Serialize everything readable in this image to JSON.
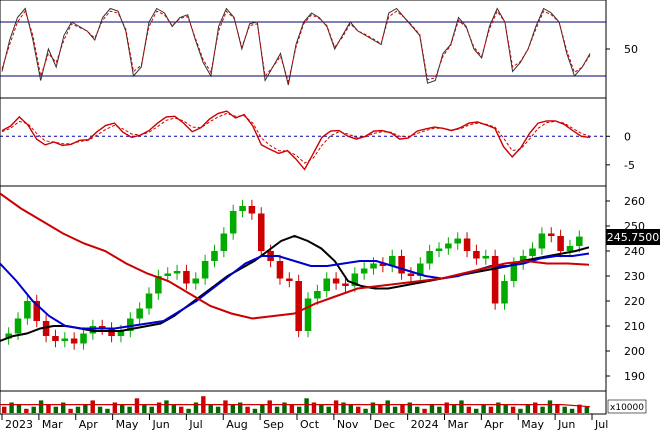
{
  "chart_data": [
    {
      "type": "line",
      "panel": "stochastic",
      "yticks": [
        50
      ],
      "reference_lines": [
        80,
        20
      ],
      "ylim": [
        0,
        100
      ],
      "series": [
        {
          "color": "#333333",
          "style": "solid",
          "values": [
            25,
            60,
            85,
            95,
            60,
            15,
            50,
            30,
            65,
            80,
            75,
            70,
            60,
            85,
            95,
            92,
            70,
            20,
            30,
            80,
            95,
            90,
            75,
            85,
            88,
            60,
            35,
            20,
            75,
            95,
            85,
            50,
            78,
            80,
            15,
            30,
            45,
            10,
            55,
            80,
            90,
            85,
            75,
            50,
            65,
            80,
            70,
            65,
            60,
            55,
            90,
            95,
            85,
            75,
            65,
            12,
            15,
            45,
            55,
            85,
            75,
            50,
            40,
            75,
            95,
            80,
            25,
            35,
            50,
            75,
            95,
            90,
            80,
            45,
            20,
            30,
            45
          ]
        },
        {
          "color": "#cc0000",
          "style": "dashed",
          "values": [
            28,
            55,
            80,
            92,
            65,
            20,
            45,
            35,
            60,
            78,
            74,
            70,
            62,
            82,
            92,
            90,
            72,
            25,
            32,
            75,
            92,
            88,
            76,
            84,
            86,
            62,
            38,
            24,
            70,
            92,
            84,
            52,
            76,
            78,
            20,
            30,
            42,
            14,
            52,
            78,
            88,
            84,
            76,
            52,
            63,
            78,
            70,
            66,
            61,
            56,
            86,
            92,
            85,
            76,
            66,
            16,
            18,
            42,
            54,
            82,
            74,
            52,
            42,
            72,
            92,
            80,
            30,
            36,
            50,
            72,
            92,
            88,
            80,
            48,
            24,
            30,
            43
          ]
        }
      ]
    },
    {
      "type": "line",
      "panel": "macd",
      "yticks": [
        0,
        -5
      ],
      "zero_line": true,
      "ylim": [
        -8,
        6
      ],
      "series": [
        {
          "color": "#cc0000",
          "style": "solid",
          "values": [
            1.0,
            1.8,
            3.4,
            2.0,
            -0.5,
            -1.5,
            -1.0,
            -1.6,
            -1.4,
            -0.7,
            -0.6,
            0.8,
            1.9,
            2.3,
            0.7,
            -0.2,
            0.2,
            1.0,
            2.3,
            3.4,
            3.5,
            2.3,
            0.8,
            1.5,
            3.0,
            4.0,
            4.4,
            3.2,
            3.8,
            1.8,
            -1.5,
            -2.3,
            -3.0,
            -2.5,
            -4.0,
            -5.8,
            -3.0,
            -0.2,
            0.9,
            1.0,
            0.0,
            -0.5,
            0.0,
            0.9,
            1.0,
            0.6,
            -0.5,
            -0.3,
            0.9,
            1.3,
            1.6,
            1.4,
            1.0,
            1.5,
            2.3,
            2.5,
            2.0,
            1.4,
            -1.8,
            -3.6,
            -2.0,
            0.5,
            2.3,
            2.7,
            2.7,
            2.1,
            1.0,
            0.0,
            -0.2
          ]
        },
        {
          "color": "#cc0000",
          "style": "dashed",
          "values": [
            0.8,
            1.4,
            2.6,
            2.2,
            0.5,
            -0.8,
            -1.0,
            -1.3,
            -1.3,
            -0.9,
            -0.7,
            0.2,
            1.2,
            1.9,
            1.3,
            0.4,
            0.2,
            0.7,
            1.7,
            2.8,
            3.2,
            2.7,
            1.6,
            1.5,
            2.5,
            3.4,
            4.0,
            3.5,
            3.6,
            2.3,
            -0.3,
            -1.6,
            -2.5,
            -2.6,
            -3.3,
            -4.7,
            -3.8,
            -1.6,
            0.1,
            0.8,
            0.4,
            -0.2,
            -0.1,
            0.5,
            0.8,
            0.7,
            0.0,
            -0.1,
            0.5,
            1.0,
            1.4,
            1.4,
            1.1,
            1.3,
            2.0,
            2.3,
            2.1,
            1.6,
            -0.3,
            -2.5,
            -2.2,
            -0.5,
            1.4,
            2.4,
            2.6,
            2.3,
            1.4,
            0.5,
            0.0
          ]
        }
      ]
    },
    {
      "type": "candlestick",
      "panel": "price",
      "yticks": [
        190,
        200,
        210,
        220,
        230,
        240,
        250,
        260
      ],
      "ylim": [
        184,
        266
      ],
      "last_price_label": "245.7500",
      "last_price": 245.75,
      "close": [
        207,
        213,
        220,
        212,
        206,
        204,
        205,
        203,
        207,
        210,
        209,
        206,
        208,
        213,
        217,
        223,
        230,
        231,
        232,
        227,
        229,
        236,
        240,
        247,
        256,
        258,
        255,
        240,
        236,
        229,
        228,
        208,
        221,
        224,
        229,
        227,
        226,
        231,
        233,
        235,
        234,
        238,
        231,
        230,
        235,
        240,
        241,
        243,
        245,
        240,
        237,
        238,
        219,
        228,
        235,
        238,
        241,
        247,
        246,
        240,
        242,
        245.75
      ],
      "moving_averages": [
        {
          "color": "#000000",
          "values": [
            204,
            206,
            207,
            209,
            210,
            210,
            209,
            208,
            208,
            208,
            209,
            210,
            211,
            214,
            218,
            222,
            226,
            230,
            233,
            236,
            240,
            244,
            246,
            244,
            241,
            236,
            228,
            226,
            225,
            225,
            226,
            227,
            228,
            229,
            230,
            231,
            232,
            233,
            234,
            236,
            237,
            238,
            239,
            240,
            241.5
          ]
        },
        {
          "color": "#0000cc",
          "values": [
            235,
            228,
            220,
            214,
            210,
            209,
            209,
            209,
            210,
            211,
            212,
            216,
            220,
            225,
            230,
            235,
            238,
            238,
            236,
            234,
            234,
            235,
            236,
            236,
            234,
            232,
            230,
            229,
            230,
            232,
            234,
            234,
            235,
            237,
            238,
            238,
            239
          ]
        },
        {
          "color": "#cc0000",
          "values": [
            263,
            257,
            252,
            247,
            243,
            240,
            235,
            231,
            228,
            223,
            218,
            215,
            213,
            214,
            215,
            219,
            222,
            225,
            226,
            227,
            228,
            229,
            231,
            233,
            235,
            236,
            235,
            235,
            234.5
          ]
        }
      ]
    },
    {
      "type": "bar",
      "panel": "volume",
      "unit_label": "x10000",
      "values": [
        3,
        5,
        4,
        2,
        3,
        6,
        4,
        3,
        5,
        2,
        3,
        4,
        6,
        3,
        2,
        5,
        4,
        3,
        7,
        4,
        3,
        5,
        6,
        4,
        3,
        2,
        5,
        8,
        4,
        3,
        6,
        4,
        5,
        3,
        2,
        4,
        6,
        3,
        5,
        4,
        3,
        7,
        5,
        4,
        3,
        6,
        5,
        4,
        3,
        2,
        5,
        4,
        6,
        3,
        4,
        5,
        3,
        2,
        4,
        3,
        5,
        4,
        6,
        3,
        2,
        4,
        3,
        5,
        4,
        3,
        2,
        4,
        5,
        3,
        6,
        4,
        3,
        2,
        4,
        3
      ],
      "ma_values": [
        4,
        4,
        4,
        4,
        4,
        4,
        4,
        4,
        4,
        4,
        4,
        4,
        4,
        4,
        4,
        4,
        4,
        4,
        4,
        4,
        4,
        3
      ]
    }
  ],
  "x_axis": {
    "tick_labels": [
      "2023",
      "Mar",
      "Apr",
      "May",
      "Jun",
      "Jul",
      "Aug",
      "Sep",
      "Oct",
      "Nov",
      "Dec",
      "2024",
      "Mar",
      "Apr",
      "May",
      "Jun",
      "Jul"
    ]
  },
  "colors": {
    "border": "#000000",
    "candle_up": "#00aa00",
    "candle_down": "#cc0000",
    "price_box_bg": "#000000",
    "price_box_text": "#ffffff",
    "volume_bar": "#006600",
    "volume_bar_alt": "#cc0000"
  }
}
